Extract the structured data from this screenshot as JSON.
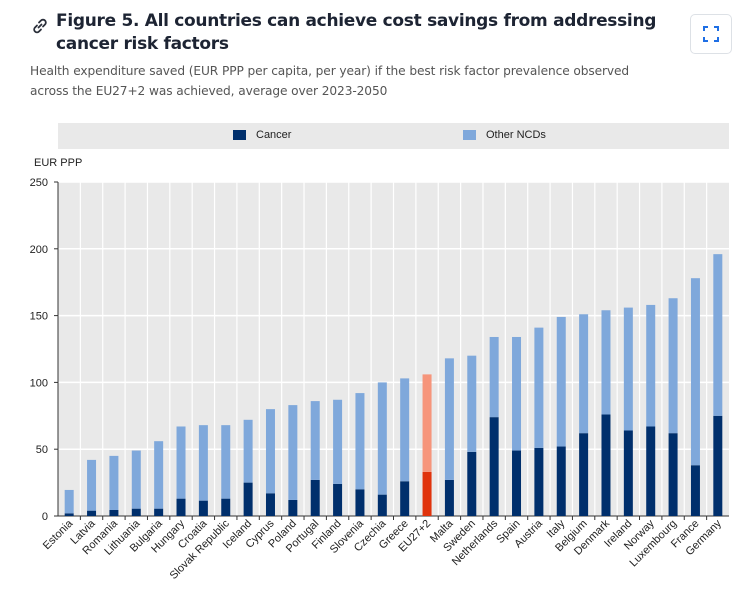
{
  "header": {
    "title": "Figure 5. All countries can achieve cost savings from addressing cancer risk factors",
    "subtitle": "Health expenditure saved (EUR PPP per capita, per year) if the best risk factor prevalence observed across the EU27+2 was achieved, average over 2023-2050",
    "link_icon": "link-icon",
    "expand_button_icon": "expand-icon"
  },
  "colors": {
    "cancer": "#002f6c",
    "other_ncds": "#7fa8db",
    "highlight_cancer": "#e0330c",
    "highlight_other": "#f6957b",
    "plot_bg": "#e9e9e9",
    "grid": "#ffffff"
  },
  "chart_data": {
    "type": "bar",
    "stacked": true,
    "title": "Figure 5. All countries can achieve cost savings from addressing cancer risk factors",
    "subtitle": "Health expenditure saved (EUR PPP per capita, per year) if the best risk factor prevalence observed across the EU27+2 was achieved, average over 2023-2050",
    "xlabel": "",
    "ylabel": "EUR PPP",
    "ylim": [
      0,
      250
    ],
    "yticks": [
      0,
      50,
      100,
      150,
      200,
      250
    ],
    "grid": true,
    "legend": {
      "placement": "top",
      "entries": [
        "Cancer",
        "Other NCDs"
      ]
    },
    "highlight_category": "EU27+2",
    "categories": [
      "Estonia",
      "Latvia",
      "Romania",
      "Lithuania",
      "Bulgaria",
      "Hungary",
      "Croatia",
      "Slovak Republic",
      "Iceland",
      "Cyprus",
      "Poland",
      "Portugal",
      "Finland",
      "Slovenia",
      "Czechia",
      "Greece",
      "EU27+2",
      "Malta",
      "Sweden",
      "Netherlands",
      "Spain",
      "Austria",
      "Italy",
      "Belgium",
      "Denmark",
      "Ireland",
      "Norway",
      "Luxembourg",
      "France",
      "Germany"
    ],
    "series": [
      {
        "name": "Cancer",
        "values": [
          2,
          4,
          4.5,
          5.5,
          5.5,
          13,
          11.5,
          13,
          25,
          17,
          12,
          27,
          24,
          20,
          16,
          26,
          33,
          27,
          48,
          74,
          49,
          51,
          52,
          62,
          76,
          64,
          67,
          62,
          38,
          75
        ]
      },
      {
        "name": "Other NCDs",
        "values": [
          17.5,
          38,
          40.5,
          43.5,
          50.5,
          54,
          56.5,
          55,
          47,
          63,
          71,
          59,
          63,
          72,
          84,
          77,
          73,
          91,
          72,
          60,
          85,
          90,
          97,
          89,
          78,
          92,
          91,
          101,
          140,
          121
        ]
      }
    ]
  }
}
